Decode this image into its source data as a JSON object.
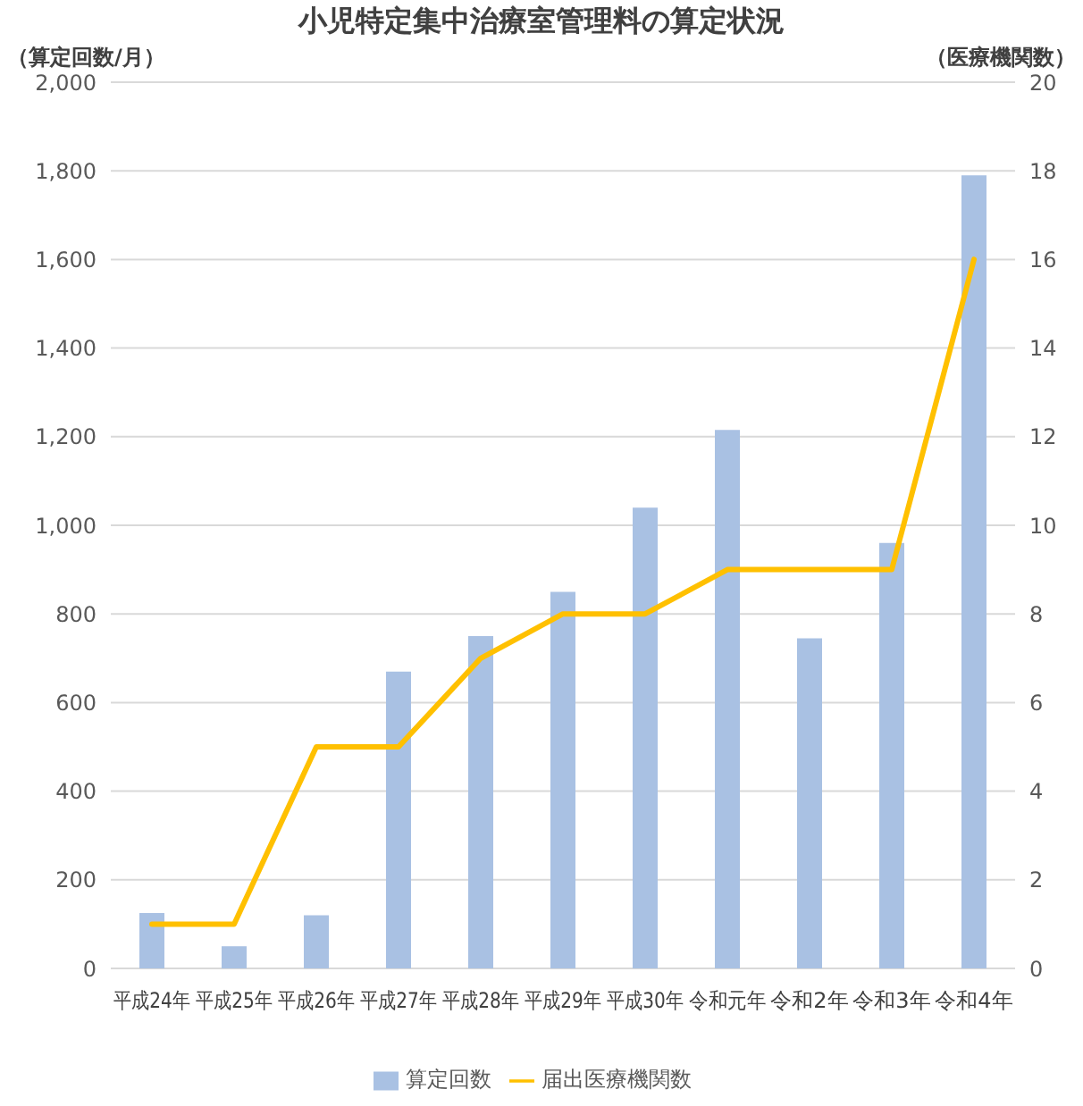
{
  "chart_data": {
    "type": "bar",
    "title": "小児特定集中治療室管理料の算定状況",
    "ylabel": "（算定回数/月）",
    "y2label": "（医療機関数）",
    "categories": [
      "平成24年",
      "平成25年",
      "平成26年",
      "平成27年",
      "平成28年",
      "平成29年",
      "平成30年",
      "令和元年",
      "令和2年",
      "令和3年",
      "令和4年"
    ],
    "series": [
      {
        "name": "算定回数",
        "color": "#a9c1e3",
        "values": [
          125,
          50,
          120,
          670,
          750,
          850,
          1040,
          1215,
          745,
          960,
          1790
        ]
      },
      {
        "name": "届出医療機関数",
        "type": "line",
        "axis": "y2",
        "color": "#ffc000",
        "values": [
          1,
          1,
          5,
          5,
          7,
          8,
          8,
          9,
          9,
          9,
          16
        ]
      }
    ],
    "ylim": [
      0,
      2000
    ],
    "yticks": [
      0,
      200,
      400,
      600,
      800,
      {
        "value": 1000,
        "label": "1,000"
      },
      {
        "value": 1200,
        "label": "1,200"
      },
      {
        "value": 1400,
        "label": "1,400"
      },
      {
        "value": 1600,
        "label": "1,600"
      },
      {
        "value": 1800,
        "label": "1,800"
      },
      {
        "value": 2000,
        "label": "2,000"
      }
    ],
    "y2lim": [
      0,
      20
    ],
    "y2ticks": [
      0,
      2,
      4,
      6,
      8,
      10,
      12,
      14,
      16,
      18,
      20
    ],
    "grid": "y",
    "legend": "bottom",
    "marker": "none"
  }
}
